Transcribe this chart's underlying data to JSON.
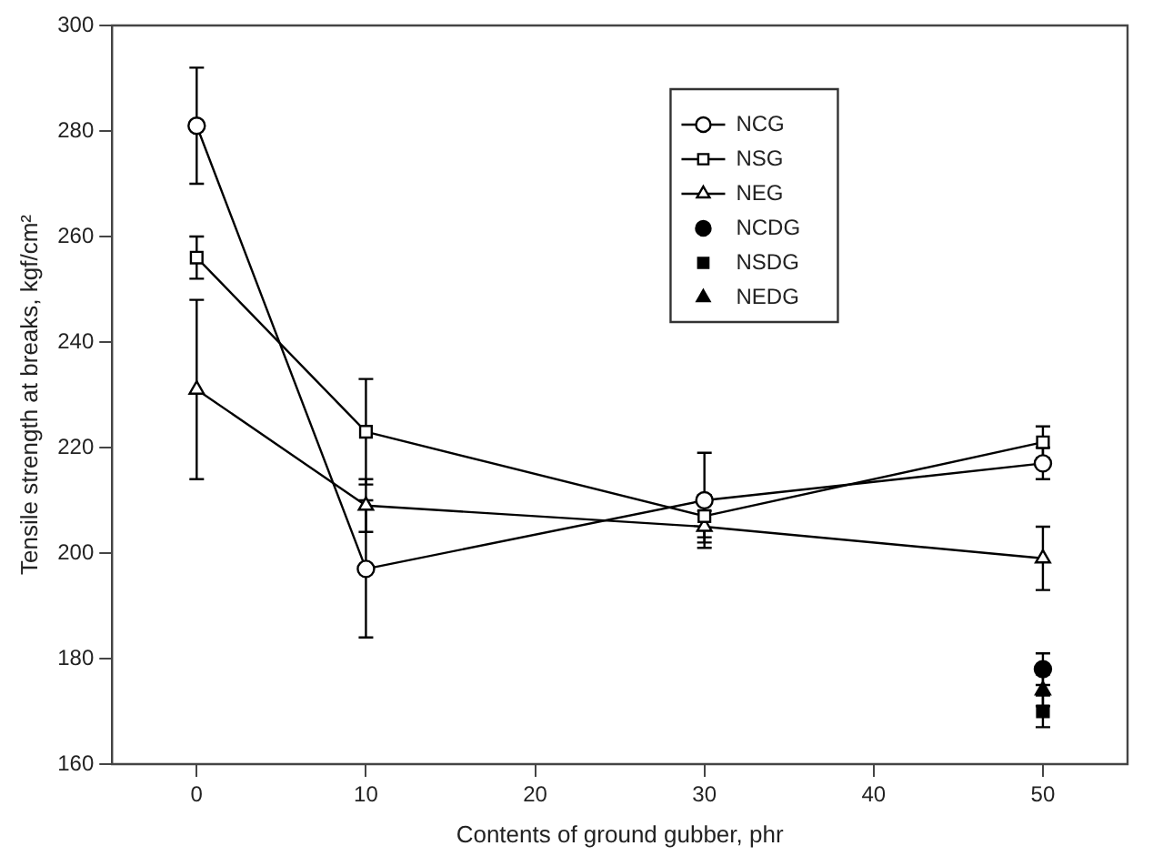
{
  "chart_data": {
    "type": "line",
    "xlabel": "Contents of ground gubber, phr",
    "ylabel": "Tensile strength at breaks, kgf/cm²",
    "xlim": [
      -5,
      55
    ],
    "xticks": [
      0,
      10,
      20,
      30,
      40,
      50
    ],
    "ylim": [
      160,
      300
    ],
    "yticks": [
      160,
      180,
      200,
      220,
      240,
      260,
      280,
      300
    ],
    "grid": false,
    "legend": "top right",
    "x": [
      0,
      10,
      30,
      50
    ],
    "series": [
      {
        "name": "NCG",
        "type": "line",
        "color": "#000000",
        "marker": "circle",
        "values": [
          281,
          197,
          210,
          217
        ],
        "errors": [
          11,
          13,
          9,
          3
        ]
      },
      {
        "name": "NSG",
        "type": "line",
        "color": "#000000",
        "marker": "square",
        "values": [
          256,
          223,
          207,
          221
        ],
        "errors": [
          4,
          10,
          4,
          3
        ]
      },
      {
        "name": "NEG",
        "type": "line",
        "color": "#000000",
        "marker": "triangle",
        "values": [
          231,
          209,
          205,
          199
        ],
        "errors": [
          17,
          5,
          3,
          6
        ]
      },
      {
        "name": "NCDG",
        "type": "scatter",
        "color": "#000000",
        "marker": "circle",
        "values": [
          null,
          null,
          null,
          178
        ],
        "errors": [
          null,
          null,
          null,
          3
        ]
      },
      {
        "name": "NSDG",
        "type": "scatter",
        "color": "#000000",
        "marker": "square",
        "values": [
          null,
          null,
          null,
          170
        ],
        "errors": [
          null,
          null,
          null,
          3
        ]
      },
      {
        "name": "NEDG",
        "type": "scatter",
        "color": "#000000",
        "marker": "triangle",
        "values": [
          null,
          null,
          null,
          174
        ],
        "errors": [
          null,
          null,
          null,
          3
        ]
      }
    ]
  }
}
